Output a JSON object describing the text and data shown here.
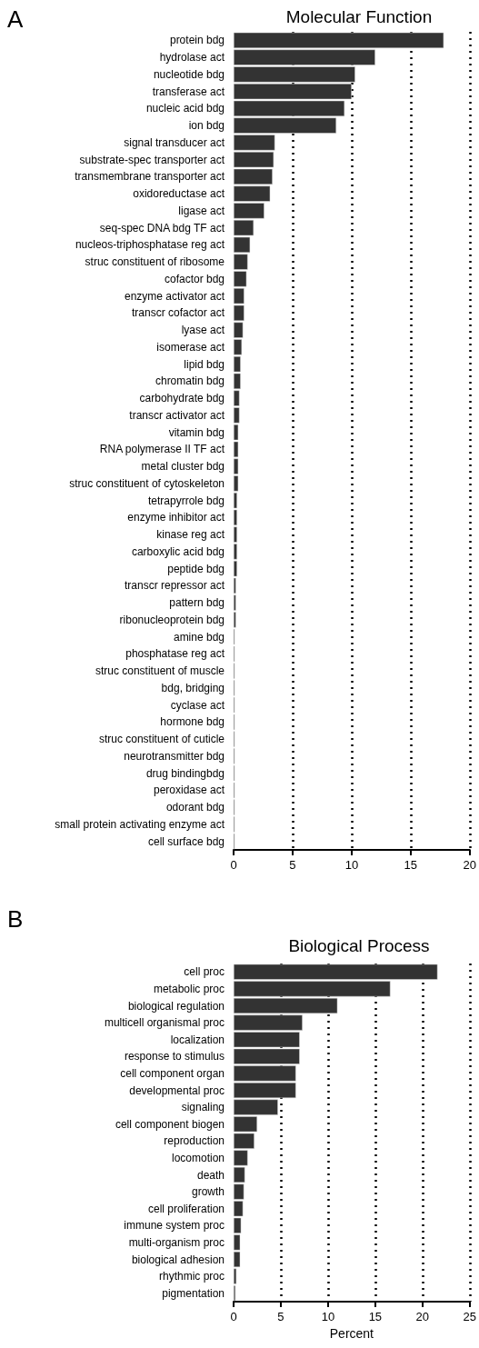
{
  "chart_data": [
    {
      "type": "bar",
      "orientation": "horizontal",
      "title": "Molecular Function",
      "annotations": [
        "A"
      ],
      "categories": [
        "protein bdg",
        "hydrolase act",
        "nucleotide bdg",
        "transferase act",
        "nucleic acid bdg",
        "ion bdg",
        "signal transducer act",
        "substrate-spec transporter act",
        "transmembrane transporter act",
        "oxidoreductase act",
        "ligase act",
        "seq-spec DNA bdg TF act",
        "nucleos-triphosphatase reg act",
        "struc constituent of ribosome",
        "cofactor bdg",
        "enzyme activator act",
        "transcr cofactor act",
        "lyase act",
        "isomerase act",
        "lipid bdg",
        "chromatin bdg",
        "carbohydrate bdg",
        "transcr activator act",
        "vitamin bdg",
        "RNA polymerase II TF act",
        "metal cluster bdg",
        "struc constituent of cytoskeleton",
        "tetrapyrrole bdg",
        "enzyme inhibitor act",
        "kinase reg act",
        "carboxylic acid bdg",
        "peptide bdg",
        "transcr repressor act",
        "pattern bdg",
        "ribonucleoprotein bdg",
        "amine bdg",
        "phosphatase reg act",
        "struc constituent of muscle",
        "bdg, bridging",
        "cyclase act",
        "hormone bdg",
        "struc constituent of cuticle",
        "neurotransmitter bdg",
        "drug bindingbdg",
        "peroxidase act",
        "odorant bdg",
        "small protein activating enzyme act",
        "cell surface bdg"
      ],
      "values": [
        17.8,
        12.0,
        10.3,
        10.0,
        9.4,
        8.7,
        3.5,
        3.4,
        3.3,
        3.1,
        2.6,
        1.7,
        1.4,
        1.2,
        1.1,
        0.9,
        0.9,
        0.8,
        0.7,
        0.6,
        0.6,
        0.5,
        0.5,
        0.4,
        0.4,
        0.4,
        0.4,
        0.3,
        0.3,
        0.3,
        0.3,
        0.3,
        0.2,
        0.2,
        0.2,
        0.1,
        0.1,
        0.1,
        0.1,
        0.1,
        0.1,
        0.1,
        0.1,
        0.1,
        0.1,
        0.1,
        0.1,
        0.1
      ],
      "color": "#333333",
      "xlim": [
        0,
        20
      ],
      "xticks": [
        0,
        5,
        10,
        15,
        20
      ],
      "grid": "x"
    },
    {
      "type": "bar",
      "orientation": "horizontal",
      "title": "Biological Process",
      "xlabel": "Percent",
      "annotations": [
        "B"
      ],
      "categories": [
        "cell proc",
        "metabolic proc",
        "biological regulation",
        "multicell organismal proc",
        "localization",
        "response to stimulus",
        "cell component organ",
        "developmental proc",
        "signaling",
        "cell component biogen",
        "reproduction",
        "locomotion",
        "death",
        "growth",
        "cell proliferation",
        "immune system proc",
        "multi-organism proc",
        "biological adhesion",
        "rhythmic proc",
        "pigmentation"
      ],
      "values": [
        21.6,
        16.6,
        11.0,
        7.3,
        7.0,
        7.0,
        6.6,
        6.6,
        4.7,
        2.5,
        2.2,
        1.5,
        1.2,
        1.1,
        1.0,
        0.8,
        0.7,
        0.7,
        0.3,
        0.2
      ],
      "color": "#333333",
      "xlim": [
        0,
        25
      ],
      "xticks": [
        0,
        5,
        10,
        15,
        20,
        25
      ],
      "grid": "x"
    }
  ]
}
